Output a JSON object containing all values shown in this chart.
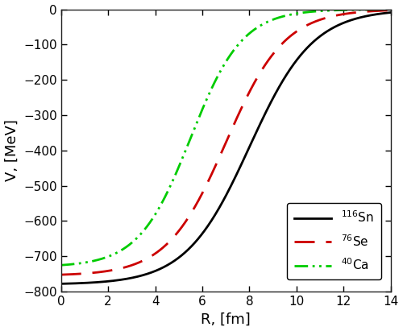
{
  "title": "",
  "xlabel": "R, [fm]",
  "ylabel": "V, [MeV]",
  "xlim": [
    0,
    14
  ],
  "ylim": [
    -800,
    0
  ],
  "xticks": [
    0,
    2,
    4,
    6,
    8,
    10,
    12,
    14
  ],
  "yticks": [
    -800,
    -700,
    -600,
    -500,
    -400,
    -300,
    -200,
    -100,
    0
  ],
  "curves": [
    {
      "label": "$^{116}$Sn",
      "color": "#000000",
      "linestyle": "solid",
      "linewidth": 2.0,
      "V0": -780,
      "r0": 8.0,
      "a": 1.35
    },
    {
      "label": "$^{76}$Se",
      "color": "#cc0000",
      "linestyle": "dashed",
      "linewidth": 2.0,
      "V0": -755,
      "r0": 7.0,
      "a": 1.25
    },
    {
      "label": "$^{40}$Ca",
      "color": "#00cc00",
      "linestyle": "dashdot",
      "linewidth": 2.0,
      "V0": -730,
      "r0": 5.5,
      "a": 1.1
    }
  ],
  "legend_loc": "lower right",
  "figsize": [
    5.0,
    4.11
  ],
  "dpi": 100,
  "background_color": "#ffffff",
  "tick_direction": "in"
}
